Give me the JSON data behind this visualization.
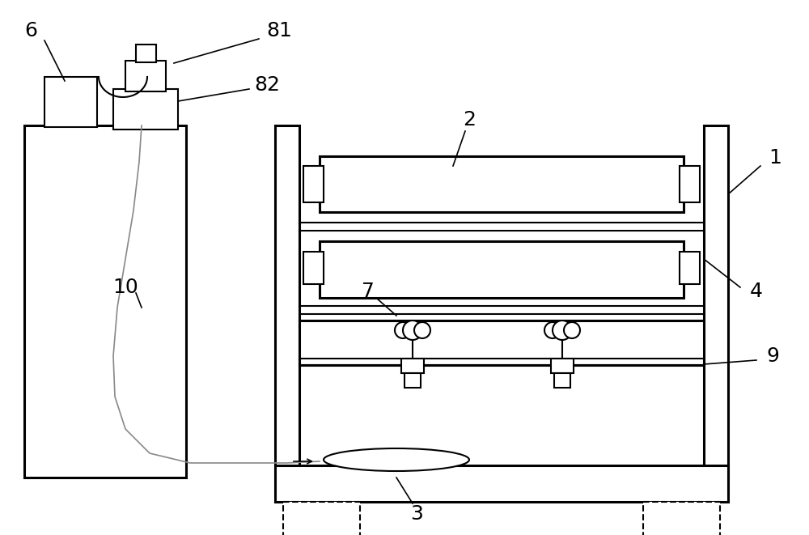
{
  "bg_color": "#ffffff",
  "line_color": "#000000",
  "lw": 1.5,
  "lw2": 2.2,
  "fs": 18
}
